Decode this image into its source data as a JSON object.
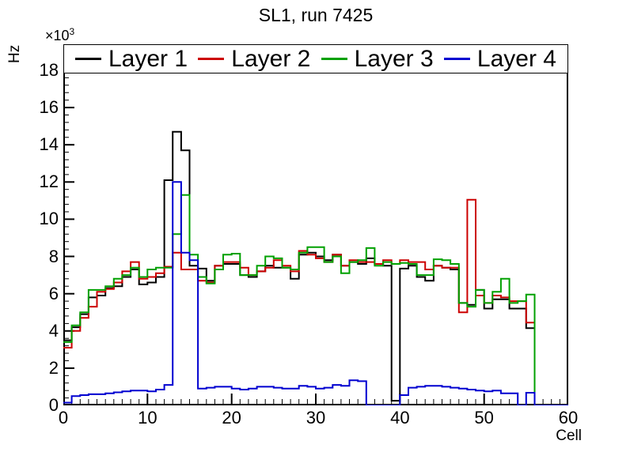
{
  "title": "SL1, run 7425",
  "y_axis": {
    "title": "Hz",
    "exponent_prefix": "×10",
    "exponent_power": "3",
    "tick_labels": [
      "0",
      "2",
      "4",
      "6",
      "8",
      "10",
      "12",
      "14",
      "16",
      "18"
    ],
    "major_step": 2,
    "minor_step": 0.4
  },
  "x_axis": {
    "title": "Cell",
    "tick_labels": [
      "0",
      "10",
      "20",
      "30",
      "40",
      "50",
      "60"
    ],
    "major_step": 10,
    "minor_step": 1
  },
  "legend": {
    "entries": [
      {
        "label": "Layer 1",
        "color": "#000000"
      },
      {
        "label": "Layer 2",
        "color": "#cc0000"
      },
      {
        "label": "Layer 3",
        "color": "#00a000"
      },
      {
        "label": "Layer 4",
        "color": "#0000d0"
      }
    ]
  },
  "chart_data": {
    "type": "line",
    "subtype": "step-histogram",
    "title": "SL1, run 7425",
    "xlabel": "Cell",
    "ylabel": "Hz",
    "y_unit_multiplier": "1e3",
    "xlim": [
      0,
      60
    ],
    "ylim": [
      0,
      19.4
    ],
    "bin_width": 1,
    "grid": false,
    "legend_position": "top-inside",
    "series": [
      {
        "name": "Layer 1",
        "color": "#000000",
        "values": [
          3.5,
          4.2,
          4.9,
          5.8,
          5.9,
          6.3,
          6.4,
          6.9,
          7.3,
          6.5,
          6.6,
          6.9,
          12.1,
          14.7,
          13.7,
          7.5,
          7.35,
          6.7,
          7.5,
          7.6,
          7.6,
          7.0,
          6.9,
          7.2,
          7.5,
          7.4,
          7.4,
          6.8,
          8.1,
          8.2,
          8.0,
          7.8,
          8.1,
          7.5,
          7.7,
          7.6,
          7.9,
          7.6,
          7.5,
          0.25,
          7.35,
          7.5,
          6.9,
          6.7,
          7.5,
          7.4,
          7.3,
          5.5,
          5.4,
          6.2,
          5.2,
          5.7,
          5.7,
          5.2,
          5.2,
          4.15,
          0,
          0,
          0,
          0
        ]
      },
      {
        "name": "Layer 2",
        "color": "#cc0000",
        "values": [
          3.1,
          4.0,
          4.7,
          5.3,
          6.1,
          6.25,
          6.6,
          7.2,
          7.7,
          6.8,
          6.9,
          7.1,
          7.45,
          8.2,
          7.3,
          7.3,
          6.7,
          6.6,
          7.5,
          7.7,
          7.7,
          7.4,
          7.0,
          7.2,
          7.4,
          7.8,
          7.5,
          7.2,
          8.3,
          8.1,
          7.9,
          7.7,
          8.1,
          7.5,
          7.8,
          7.7,
          7.7,
          7.6,
          7.8,
          7.6,
          7.8,
          7.7,
          7.7,
          7.3,
          7.5,
          7.4,
          7.4,
          5.0,
          11.05,
          5.9,
          5.5,
          5.9,
          5.8,
          5.6,
          5.6,
          4.45,
          0,
          0,
          0,
          0
        ]
      },
      {
        "name": "Layer 3",
        "color": "#00a000",
        "values": [
          3.4,
          4.3,
          5.0,
          6.2,
          6.2,
          6.4,
          6.8,
          7.0,
          7.4,
          6.9,
          7.3,
          7.4,
          7.4,
          9.2,
          11.3,
          8.1,
          6.9,
          6.55,
          7.3,
          8.1,
          8.15,
          7.0,
          7.0,
          7.5,
          8.0,
          7.9,
          7.4,
          7.3,
          8.2,
          8.5,
          8.5,
          7.7,
          8.0,
          7.1,
          7.7,
          7.8,
          8.45,
          7.5,
          7.7,
          7.6,
          7.65,
          7.6,
          7.0,
          7.0,
          7.85,
          7.8,
          7.6,
          5.5,
          5.3,
          6.2,
          5.5,
          6.1,
          6.8,
          5.5,
          5.6,
          5.95,
          0,
          0,
          0,
          0
        ]
      },
      {
        "name": "Layer 4",
        "color": "#0000d0",
        "values": [
          0.15,
          0.5,
          0.55,
          0.6,
          0.6,
          0.65,
          0.7,
          0.75,
          0.8,
          0.8,
          0.75,
          0.85,
          1.1,
          12.0,
          8.2,
          7.8,
          0.9,
          0.95,
          1.0,
          1.0,
          0.9,
          0.85,
          0.9,
          1.0,
          1.0,
          0.95,
          0.9,
          0.9,
          1.05,
          1.0,
          0.9,
          0.95,
          1.1,
          1.05,
          1.35,
          1.3,
          0,
          0,
          0,
          0,
          0.55,
          0.95,
          1.0,
          1.05,
          1.05,
          1.0,
          0.95,
          0.9,
          0.85,
          0.8,
          0.75,
          0.8,
          0.65,
          0.65,
          0,
          0.68,
          0,
          0,
          0,
          0
        ]
      }
    ]
  }
}
